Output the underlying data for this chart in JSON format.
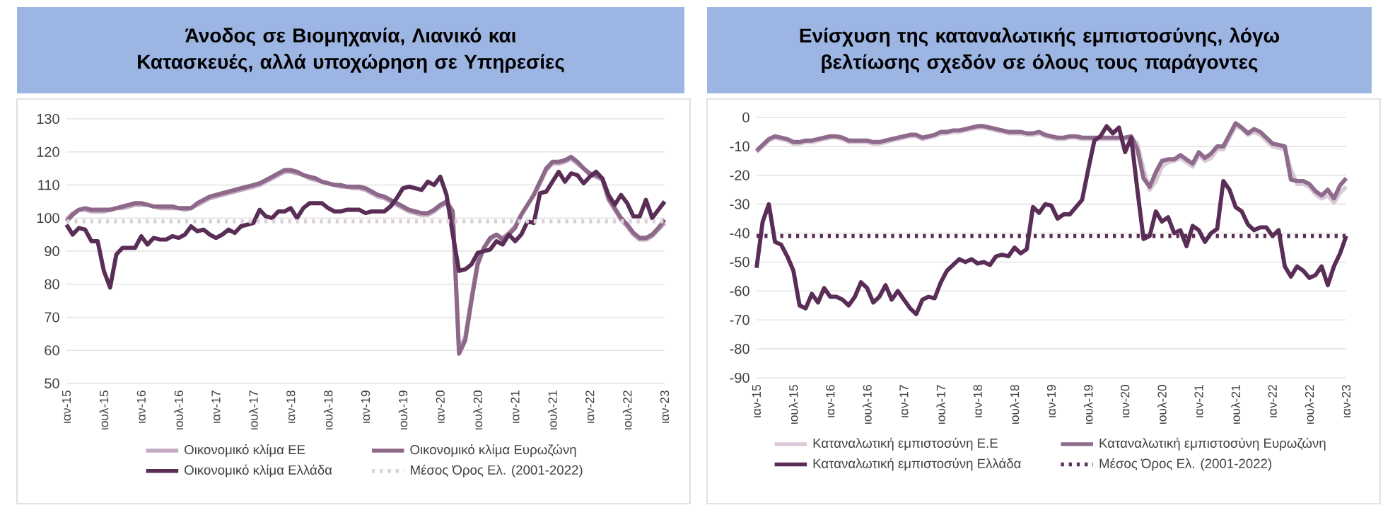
{
  "chart_data": [
    {
      "type": "line",
      "title": "Άνοδος σε Βιομηχανία, Λιανικό και Κατασκευές, αλλά υποχώρηση σε Υπηρεσίες",
      "categories": [
        "ιαν-15",
        null,
        null,
        null,
        null,
        null,
        "ιουλ-15",
        null,
        null,
        null,
        null,
        null,
        "ιαν-16",
        null,
        null,
        null,
        null,
        null,
        "ιουλ-16",
        null,
        null,
        null,
        null,
        null,
        "ιαν-17",
        null,
        null,
        null,
        null,
        null,
        "ιουλ-17",
        null,
        null,
        null,
        null,
        null,
        "ιαν-18",
        null,
        null,
        null,
        null,
        null,
        "ιουλ-18",
        null,
        null,
        null,
        null,
        null,
        "ιαν-19",
        null,
        null,
        null,
        null,
        null,
        "ιουλ-19",
        null,
        null,
        null,
        null,
        null,
        "ιαν-20",
        null,
        null,
        null,
        null,
        null,
        "ιουλ-20",
        null,
        null,
        null,
        null,
        null,
        "ιαν-21",
        null,
        null,
        null,
        null,
        null,
        "ιουλ-21",
        null,
        null,
        null,
        null,
        null,
        "ιαν-22",
        null,
        null,
        null,
        null,
        null,
        "ιουλ-22",
        null,
        null,
        null,
        null,
        null,
        "ιαν-23"
      ],
      "series": [
        {
          "name": "Οικονομικό κλίμα ΕΕ",
          "color": "#c3a9c1",
          "values": [
            99.5,
            101.5,
            102.5,
            102.5,
            102,
            102,
            102,
            102.5,
            103,
            103,
            103.5,
            104,
            104,
            104,
            103.5,
            103,
            103,
            103,
            103,
            102.5,
            103,
            104,
            105,
            106,
            106.5,
            107,
            107.5,
            108,
            108.5,
            109,
            109.5,
            110,
            111,
            112,
            113,
            114,
            114,
            113.5,
            113,
            112,
            111.5,
            111,
            110.5,
            110,
            109.5,
            109.5,
            109,
            109,
            108.5,
            107.5,
            106.5,
            106,
            105,
            104,
            103,
            102,
            101.5,
            101,
            101,
            102,
            103.5,
            104.5,
            101,
            60,
            64,
            76,
            87,
            91,
            93.5,
            95,
            94,
            95.5,
            97.5,
            101,
            104,
            107,
            110.5,
            114.5,
            116.5,
            116.5,
            117,
            118,
            116.5,
            115,
            113,
            112.5,
            111.5,
            105.5,
            102.5,
            99.5,
            97.5,
            95,
            93.5,
            93.5,
            94.5,
            96.5,
            98.5
          ]
        },
        {
          "name": "Οικονομικό κλίμα Ευρωζώνη",
          "color": "#8c6889",
          "values": [
            99,
            101,
            102.5,
            103,
            102.5,
            102.5,
            102.5,
            102.5,
            103,
            103.5,
            104,
            104.5,
            104.5,
            104,
            103.5,
            103.5,
            103.5,
            103.5,
            103,
            103,
            103,
            104.5,
            105.5,
            106.5,
            107,
            107.5,
            108,
            108.5,
            109,
            109.5,
            110,
            110.5,
            111.5,
            112.5,
            113.5,
            114.5,
            114.5,
            114,
            113,
            112.5,
            112,
            111,
            110.5,
            110,
            110,
            109.5,
            109.5,
            109.5,
            109,
            108,
            107,
            106.5,
            105.5,
            104.5,
            103.5,
            102.5,
            102,
            101.5,
            101.5,
            102.5,
            104,
            105,
            102,
            59,
            63,
            75,
            86,
            91,
            94,
            95,
            93.5,
            95,
            97,
            101,
            104,
            107,
            111,
            115,
            117,
            117,
            117.5,
            118.5,
            117,
            115,
            113.5,
            113,
            112,
            106,
            103,
            100,
            98,
            95.5,
            94,
            94,
            95,
            97,
            99.5
          ]
        },
        {
          "name": "Οικονομικό κλίμα Ελλάδα",
          "color": "#5a2d57",
          "values": [
            98,
            95,
            97,
            96.5,
            93,
            93,
            84,
            79,
            89,
            91,
            91,
            91,
            94.5,
            92,
            94,
            93.5,
            93.5,
            94.5,
            94,
            95,
            97.5,
            96,
            96.5,
            95,
            94,
            95,
            96.5,
            95.5,
            97.5,
            98,
            98.5,
            102.5,
            100.5,
            100,
            102,
            102,
            103,
            100,
            103,
            104.5,
            104.5,
            104.5,
            103,
            102,
            102,
            102.5,
            102.5,
            102.5,
            101.5,
            102,
            102,
            102,
            103.5,
            106,
            109,
            109.5,
            109,
            108.5,
            111,
            110,
            112.5,
            107,
            95,
            84,
            84.5,
            86,
            89.5,
            90,
            90.5,
            93,
            92,
            95,
            93,
            95,
            99,
            98.5,
            107.5,
            108,
            111,
            114,
            111,
            113.5,
            113,
            110.5,
            112.5,
            114,
            112,
            107,
            104,
            107,
            104.5,
            100.5,
            100.5,
            105.5,
            100,
            102.5,
            105
          ]
        }
      ],
      "ref_lines": [
        {
          "axis": "y",
          "value": 99,
          "label": "Μέσος Όρος Ελ. (2001-2022)",
          "color": "#dcd0da",
          "line_style": "dotted"
        }
      ],
      "ylim": [
        50,
        130
      ],
      "yticks": [
        50,
        60,
        70,
        80,
        90,
        100,
        110,
        120,
        130
      ],
      "grid": "y",
      "legend": "bottom"
    },
    {
      "type": "line",
      "title": "Ενίσχυση της καταναλωτικής εμπιστοσύνης, λόγω βελτίωσης σχεδόν σε όλους τους παράγοντες",
      "categories": [
        "ιαν-15",
        null,
        null,
        null,
        null,
        null,
        "ιουλ-15",
        null,
        null,
        null,
        null,
        null,
        "ιαν-16",
        null,
        null,
        null,
        null,
        null,
        "ιουλ-16",
        null,
        null,
        null,
        null,
        null,
        "ιαν-17",
        null,
        null,
        null,
        null,
        null,
        "ιουλ-17",
        null,
        null,
        null,
        null,
        null,
        "ιαν-18",
        null,
        null,
        null,
        null,
        null,
        "ιουλ-18",
        null,
        null,
        null,
        null,
        null,
        "ιαν-19",
        null,
        null,
        null,
        null,
        null,
        "ιουλ-19",
        null,
        null,
        null,
        null,
        null,
        "ιαν-20",
        null,
        null,
        null,
        null,
        null,
        "ιουλ-20",
        null,
        null,
        null,
        null,
        null,
        "ιαν-21",
        null,
        null,
        null,
        null,
        null,
        "ιουλ-21",
        null,
        null,
        null,
        null,
        null,
        "ιαν-22",
        null,
        null,
        null,
        null,
        null,
        "ιουλ-22",
        null,
        null,
        null,
        null,
        null,
        "ιαν-23"
      ],
      "series": [
        {
          "name": "Καταναλωτική εμπιστοσύνη Ε.Ε",
          "color": "#dac9d8",
          "values": [
            -12,
            -10,
            -8,
            -7,
            -7.5,
            -8,
            -9,
            -9,
            -8.5,
            -8.5,
            -8,
            -7.5,
            -7,
            -7,
            -7.5,
            -8.5,
            -8.5,
            -8.5,
            -8.5,
            -9,
            -9,
            -8.5,
            -8,
            -7.5,
            -7,
            -6.5,
            -6.5,
            -7.5,
            -7,
            -6.5,
            -5.5,
            -5.5,
            -5,
            -5,
            -4.5,
            -4,
            -3.5,
            -3.5,
            -4,
            -4.5,
            -5,
            -5.5,
            -5.5,
            -5.5,
            -6,
            -6,
            -5.5,
            -6.5,
            -7,
            -7.5,
            -7.5,
            -7,
            -7,
            -7.5,
            -7.5,
            -7.5,
            -7.5,
            -7.5,
            -7.5,
            -7.5,
            -7.5,
            -7,
            -9,
            -18,
            -25,
            -22,
            -17,
            -15.5,
            -15,
            -14,
            -15.5,
            -17,
            -13,
            -15,
            -14,
            -11,
            -11,
            -7,
            -3,
            -4,
            -6,
            -5,
            -6,
            -8,
            -10,
            -10.5,
            -11,
            -18,
            -23,
            -23,
            -24,
            -26.5,
            -28,
            -27,
            -29.5,
            -26,
            -24
          ]
        },
        {
          "name": "Καταναλωτική εμπιστοσύνη Ευρωζώνη",
          "color": "#8e6a8b",
          "values": [
            -11.5,
            -9.5,
            -7.5,
            -6.5,
            -7,
            -7.5,
            -8.5,
            -8.5,
            -8,
            -8,
            -7.5,
            -7,
            -6.5,
            -6.5,
            -7,
            -8,
            -8,
            -8,
            -8,
            -8.5,
            -8.5,
            -8,
            -7.5,
            -7,
            -6.5,
            -6,
            -6,
            -7,
            -6.5,
            -6,
            -5,
            -5,
            -4.5,
            -4.5,
            -4,
            -3.5,
            -3,
            -3,
            -3.5,
            -4,
            -4.5,
            -5,
            -5,
            -5,
            -5.5,
            -5.5,
            -5,
            -6,
            -6.5,
            -7,
            -7,
            -6.5,
            -6.5,
            -7,
            -7,
            -7,
            -7,
            -7,
            -7,
            -7,
            -7,
            -6.5,
            -11,
            -21,
            -24,
            -19,
            -15,
            -14.5,
            -14.5,
            -13,
            -14.5,
            -16,
            -12,
            -14,
            -12.5,
            -10,
            -10,
            -6,
            -2,
            -3.5,
            -5.5,
            -4,
            -5,
            -7,
            -9,
            -9.5,
            -10,
            -21.5,
            -22,
            -22,
            -23,
            -25.5,
            -27,
            -25,
            -28,
            -23.5,
            -21
          ]
        },
        {
          "name": "Καταναλωτική εμπιστοσύνη Ελλάδα",
          "color": "#5a2d57",
          "values": [
            -52,
            -36,
            -30,
            -43,
            -44,
            -48,
            -53,
            -65,
            -66,
            -61,
            -64,
            -59,
            -62,
            -62,
            -63,
            -65,
            -62,
            -57,
            -59,
            -64,
            -62,
            -58,
            -63,
            -60,
            -63,
            -66,
            -68,
            -63,
            -62,
            -62.5,
            -57,
            -53,
            -51,
            -49,
            -50,
            -49,
            -50.5,
            -50,
            -51,
            -48,
            -47.5,
            -48,
            -45,
            -47,
            -45.5,
            -31,
            -33,
            -30,
            -30.5,
            -35,
            -33.5,
            -33.5,
            -31,
            -28.5,
            -18,
            -8,
            -6.5,
            -3,
            -5.5,
            -3.5,
            -12,
            -7,
            -25,
            -42,
            -41,
            -32.5,
            -36,
            -34.5,
            -40,
            -39,
            -44.5,
            -37.5,
            -39,
            -43,
            -40,
            -38.5,
            -22,
            -25,
            -31,
            -32.5,
            -37,
            -39,
            -38,
            -38,
            -41,
            -39,
            -51.5,
            -55,
            -51.5,
            -53,
            -55.5,
            -54.5,
            -51.5,
            -58,
            -51.5,
            -47,
            -41
          ]
        }
      ],
      "ref_lines": [
        {
          "axis": "y",
          "value": -41,
          "label": "Μέσος Όρος Ελ. (2001-2022)",
          "color": "#5a2d57",
          "line_style": "dotted"
        }
      ],
      "ylim": [
        -90,
        0
      ],
      "yticks": [
        -90,
        -80,
        -70,
        -60,
        -50,
        -40,
        -30,
        -20,
        -10,
        0
      ],
      "grid": "y",
      "legend": "bottom"
    }
  ]
}
